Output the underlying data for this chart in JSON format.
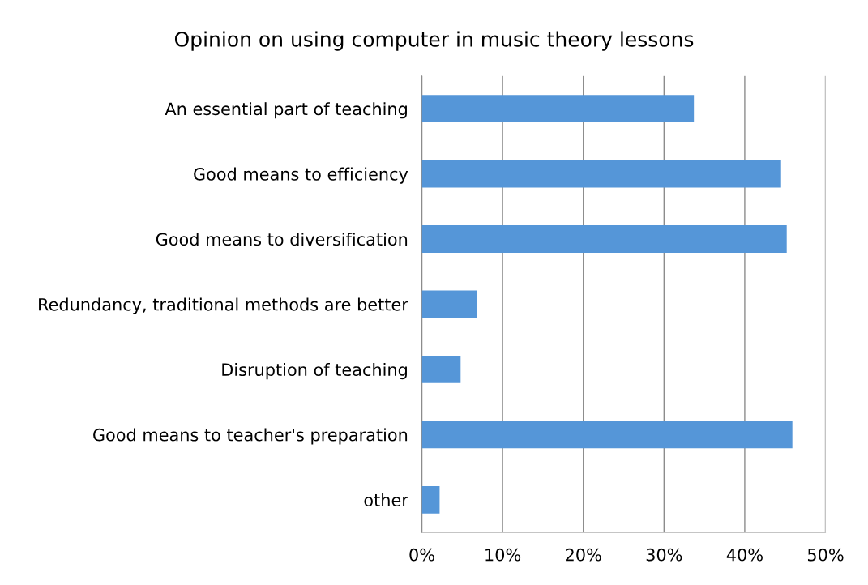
{
  "chart_data": {
    "type": "bar",
    "orientation": "horizontal",
    "title": "Opinion on using computer in music theory lessons",
    "categories": [
      "An essential part of teaching",
      "Good means to efficiency",
      "Good means to diversification",
      "Redundancy, traditional methods are better",
      "Disruption of teaching",
      "Good means to teacher's preparation",
      "other"
    ],
    "values": [
      33.7,
      44.5,
      45.2,
      6.8,
      4.8,
      45.9,
      2.2
    ],
    "color": "#5596d8",
    "xlim": [
      0,
      50
    ],
    "xticks": [
      {
        "value": 0,
        "label": "0%"
      },
      {
        "value": 10,
        "label": "10%"
      },
      {
        "value": 20,
        "label": "20%"
      },
      {
        "value": 30,
        "label": "30%"
      },
      {
        "value": 40,
        "label": "40%"
      },
      {
        "value": 50,
        "label": "50%"
      }
    ],
    "grid": "x"
  }
}
